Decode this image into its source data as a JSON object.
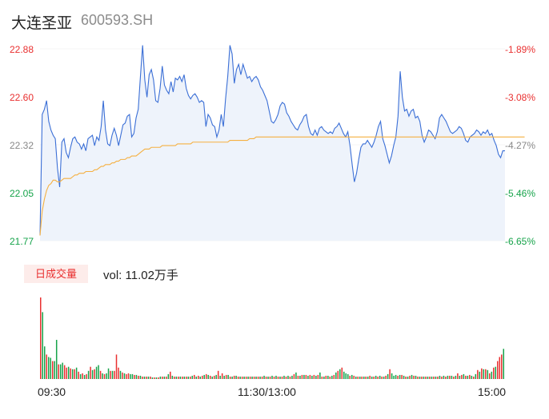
{
  "header": {
    "name": "大连圣亚",
    "code": "600593.SH"
  },
  "colors": {
    "up": "#e93030",
    "down": "#16a34a",
    "price_line": "#3b6fd6",
    "avg_line": "#f5b041",
    "fill": "#eef3fb"
  },
  "volume_panel": {
    "label": "日成交量",
    "vol_text": "vol: 11.02万手"
  },
  "chart_data": [
    {
      "type": "line",
      "title": "",
      "y_ticks": [
        "22.88",
        "22.60",
        "22.32",
        "22.05",
        "21.77"
      ],
      "y_pct_ticks": [
        "-1.89%",
        "-3.08%",
        "-4.27%",
        "-5.46%",
        "-6.65%"
      ],
      "ylim": [
        21.77,
        22.88
      ],
      "x_ticks": [
        "09:30",
        "11:30/13:00",
        "15:00"
      ],
      "series": [
        {
          "values": [
            21.8,
            22.5,
            22.53,
            22.58,
            22.46,
            22.41,
            22.38,
            22.36,
            22.19,
            22.08,
            22.34,
            22.36,
            22.28,
            22.25,
            22.31,
            22.36,
            22.37,
            22.34,
            22.33,
            22.3,
            22.33,
            22.29,
            22.36,
            22.37,
            22.38,
            22.32,
            22.37,
            22.35,
            22.43,
            22.58,
            22.41,
            22.33,
            22.32,
            22.38,
            22.42,
            22.38,
            22.32,
            22.38,
            22.44,
            22.45,
            22.49,
            22.5,
            22.37,
            22.39,
            22.48,
            22.53,
            22.72,
            22.9,
            22.7,
            22.6,
            22.73,
            22.76,
            22.7,
            22.58,
            22.57,
            22.65,
            22.78,
            22.67,
            22.64,
            22.62,
            22.69,
            22.63,
            22.71,
            22.7,
            22.72,
            22.69,
            22.73,
            22.65,
            22.61,
            22.59,
            22.61,
            22.62,
            22.6,
            22.57,
            22.58,
            22.57,
            22.43,
            22.5,
            22.48,
            22.44,
            22.43,
            22.37,
            22.41,
            22.5,
            22.43,
            22.59,
            22.72,
            22.9,
            22.85,
            22.68,
            22.76,
            22.79,
            22.73,
            22.79,
            22.75,
            22.71,
            22.72,
            22.69,
            22.71,
            22.72,
            22.7,
            22.66,
            22.64,
            22.61,
            22.58,
            22.52,
            22.46,
            22.45,
            22.47,
            22.5,
            22.55,
            22.57,
            22.56,
            22.51,
            22.49,
            22.46,
            22.44,
            22.42,
            22.41,
            22.44,
            22.46,
            22.49,
            22.5,
            22.43,
            22.39,
            22.38,
            22.41,
            22.38,
            22.42,
            22.43,
            22.41,
            22.4,
            22.39,
            22.4,
            22.39,
            22.42,
            22.43,
            22.45,
            22.42,
            22.39,
            22.37,
            22.4,
            22.32,
            22.21,
            22.11,
            22.16,
            22.24,
            22.31,
            22.33,
            22.33,
            22.35,
            22.33,
            22.31,
            22.34,
            22.38,
            22.43,
            22.46,
            22.36,
            22.32,
            22.27,
            22.22,
            22.26,
            22.32,
            22.37,
            22.49,
            22.75,
            22.6,
            22.52,
            22.53,
            22.49,
            22.52,
            22.53,
            22.48,
            22.49,
            22.46,
            22.38,
            22.34,
            22.37,
            22.41,
            22.4,
            22.38,
            22.36,
            22.4,
            22.48,
            22.5,
            22.48,
            22.46,
            22.43,
            22.4,
            22.39,
            22.4,
            22.41,
            22.43,
            22.42,
            22.39,
            22.35,
            22.34,
            22.37,
            22.38,
            22.39,
            22.41,
            22.4,
            22.38,
            22.4,
            22.39,
            22.41,
            22.38,
            22.39,
            22.35,
            22.32,
            22.27,
            22.25,
            22.29,
            22.29
          ]
        },
        {
          "values": [
            21.8,
            21.94,
            22.01,
            22.06,
            22.09,
            22.1,
            22.12,
            22.12,
            22.11,
            22.11,
            22.12,
            22.13,
            22.13,
            22.13,
            22.13,
            22.14,
            22.15,
            22.15,
            22.16,
            22.16,
            22.16,
            22.17,
            22.17,
            22.17,
            22.17,
            22.18,
            22.18,
            22.19,
            22.2,
            22.2,
            22.21,
            22.21,
            22.21,
            22.22,
            22.22,
            22.23,
            22.23,
            22.24,
            22.24,
            22.24,
            22.25,
            22.25,
            22.26,
            22.26,
            22.26,
            22.27,
            22.28,
            22.29,
            22.3,
            22.3,
            22.3,
            22.31,
            22.31,
            22.31,
            22.31,
            22.31,
            22.32,
            22.32,
            22.32,
            22.32,
            22.32,
            22.32,
            22.32,
            22.33,
            22.33,
            22.33,
            22.33,
            22.33,
            22.33,
            22.33,
            22.34,
            22.34,
            22.34,
            22.34,
            22.34,
            22.34,
            22.34,
            22.34,
            22.34,
            22.34,
            22.34,
            22.34,
            22.34,
            22.34,
            22.34,
            22.34,
            22.34,
            22.35,
            22.35,
            22.35,
            22.35,
            22.35,
            22.35,
            22.35,
            22.35,
            22.35,
            22.36,
            22.36,
            22.36,
            22.37,
            22.37,
            22.37,
            22.37,
            22.37,
            22.37,
            22.37,
            22.37,
            22.37,
            22.37,
            22.37,
            22.37,
            22.37,
            22.37,
            22.37,
            22.37,
            22.37,
            22.37,
            22.37,
            22.37,
            22.37,
            22.37,
            22.37,
            22.37,
            22.37,
            22.37,
            22.37,
            22.37,
            22.37,
            22.37,
            22.37,
            22.37,
            22.37,
            22.37,
            22.37,
            22.37,
            22.37,
            22.37,
            22.37,
            22.37,
            22.37,
            22.37,
            22.37,
            22.37,
            22.37,
            22.37,
            22.37,
            22.37,
            22.37,
            22.37,
            22.37,
            22.37,
            22.37,
            22.37,
            22.37,
            22.37,
            22.37,
            22.37,
            22.37,
            22.37,
            22.37,
            22.37,
            22.37,
            22.37,
            22.37,
            22.37,
            22.37,
            22.37,
            22.37,
            22.37,
            22.37,
            22.37,
            22.37,
            22.37,
            22.37,
            22.37,
            22.37,
            22.37,
            22.37,
            22.37,
            22.37,
            22.37,
            22.37,
            22.37,
            22.37,
            22.37,
            22.37,
            22.37,
            22.37,
            22.37,
            22.37,
            22.37,
            22.37,
            22.37,
            22.37,
            22.37,
            22.37,
            22.37,
            22.37,
            22.37,
            22.37,
            22.37,
            22.37,
            22.37,
            22.37,
            22.37,
            22.37,
            22.37,
            22.37,
            22.37,
            22.37,
            22.37,
            22.37,
            22.37,
            22.37,
            22.37,
            22.37,
            22.37,
            22.37,
            22.37,
            22.37,
            22.37,
            22.37,
            22.37
          ]
        }
      ]
    },
    {
      "type": "bar",
      "title": "",
      "values": [
        100,
        82,
        40,
        30,
        27,
        26,
        22,
        22,
        48,
        18,
        18,
        20,
        17,
        14,
        15,
        13,
        12,
        12,
        14,
        9,
        6,
        7,
        5,
        6,
        10,
        15,
        11,
        12,
        15,
        17,
        10,
        7,
        6,
        7,
        13,
        10,
        10,
        10,
        30,
        14,
        10,
        8,
        7,
        6,
        7,
        6,
        6,
        5,
        5,
        4,
        4,
        3,
        3,
        3,
        3,
        3,
        2,
        2,
        2,
        2,
        3,
        3,
        3,
        3,
        6,
        9,
        4,
        3,
        3,
        3,
        3,
        3,
        3,
        3,
        3,
        3,
        4,
        5,
        3,
        4,
        3,
        4,
        5,
        6,
        5,
        4,
        3,
        4,
        5,
        10,
        4,
        7,
        4,
        5,
        5,
        3,
        3,
        4,
        4,
        3,
        3,
        3,
        3,
        3,
        3,
        3,
        3,
        3,
        3,
        3,
        3,
        3,
        4,
        3,
        3,
        3,
        4,
        3,
        4,
        3,
        3,
        3,
        4,
        3,
        4,
        3,
        4,
        6,
        8,
        4,
        4,
        5,
        5,
        5,
        4,
        5,
        4,
        5,
        4,
        5,
        8,
        3,
        3,
        4,
        4,
        3,
        4,
        5,
        8,
        10,
        12,
        14,
        9,
        7,
        6,
        4,
        5,
        4,
        3,
        3,
        3,
        3,
        3,
        3,
        3,
        4,
        3,
        3,
        4,
        3,
        4,
        3,
        3,
        4,
        6,
        12,
        7,
        4,
        5,
        4,
        5,
        5,
        4,
        3,
        3,
        4,
        5,
        4,
        4,
        3,
        3,
        3,
        3,
        3,
        3,
        3,
        3,
        3,
        3,
        3,
        4,
        3,
        4,
        3,
        4,
        4,
        4,
        3,
        4,
        7,
        4,
        5,
        6,
        4,
        4,
        5,
        4,
        3,
        6,
        11,
        9,
        13,
        12,
        12,
        11,
        7,
        9,
        14,
        15,
        22,
        27,
        30,
        37
      ],
      "colors": [
        "up",
        "down",
        "down",
        "up",
        "down",
        "down",
        "up",
        "down",
        "down",
        "up",
        "down",
        "down",
        "up",
        "up",
        "down",
        "up",
        "down",
        "up",
        "down",
        "up",
        "down",
        "up",
        "down",
        "up",
        "down",
        "up",
        "down",
        "up",
        "down",
        "down",
        "up",
        "down",
        "up",
        "down",
        "down",
        "up",
        "down",
        "up",
        "up",
        "up",
        "down",
        "up",
        "down",
        "up",
        "up",
        "down",
        "down",
        "up",
        "down",
        "up",
        "down",
        "up",
        "down",
        "up",
        "down",
        "up",
        "down",
        "up",
        "down",
        "up",
        "down",
        "up",
        "down",
        "up",
        "down",
        "up",
        "down",
        "up",
        "down",
        "up",
        "down",
        "up",
        "down",
        "up",
        "down",
        "up",
        "down",
        "up",
        "down",
        "up",
        "down",
        "up",
        "down",
        "up",
        "down",
        "up",
        "down",
        "up",
        "down",
        "up",
        "down",
        "up",
        "down",
        "up",
        "down",
        "up",
        "down",
        "up",
        "down",
        "up",
        "down",
        "up",
        "down",
        "up",
        "down",
        "up",
        "down",
        "up",
        "down",
        "up",
        "down",
        "up",
        "down",
        "up",
        "down",
        "up",
        "down",
        "up",
        "down",
        "up",
        "down",
        "up",
        "down",
        "up",
        "down",
        "up",
        "down",
        "up",
        "down",
        "up",
        "down",
        "up",
        "down",
        "up",
        "down",
        "up",
        "down",
        "up",
        "down",
        "up",
        "down",
        "up",
        "down",
        "up",
        "down",
        "up",
        "down",
        "up",
        "down",
        "up",
        "down",
        "up",
        "down",
        "down",
        "down",
        "up",
        "down",
        "up",
        "down",
        "up",
        "down",
        "up",
        "down",
        "up",
        "down",
        "up",
        "down",
        "up",
        "down",
        "up",
        "down",
        "up",
        "down",
        "up",
        "down",
        "up",
        "down",
        "down",
        "down",
        "up",
        "down",
        "up",
        "down",
        "up",
        "down",
        "up",
        "down",
        "up",
        "down",
        "up",
        "down",
        "up",
        "down",
        "up",
        "down",
        "up",
        "down",
        "up",
        "down",
        "up",
        "down",
        "up",
        "down",
        "up",
        "down",
        "up",
        "down",
        "up",
        "down",
        "up",
        "down",
        "up",
        "down",
        "up",
        "down",
        "up",
        "down",
        "up",
        "down",
        "up",
        "down",
        "up",
        "down",
        "up",
        "down",
        "up",
        "down",
        "up",
        "down",
        "up",
        "up",
        "up",
        "down",
        "up",
        "down",
        "up",
        "down",
        "up",
        "up",
        "up",
        "up"
      ]
    }
  ]
}
